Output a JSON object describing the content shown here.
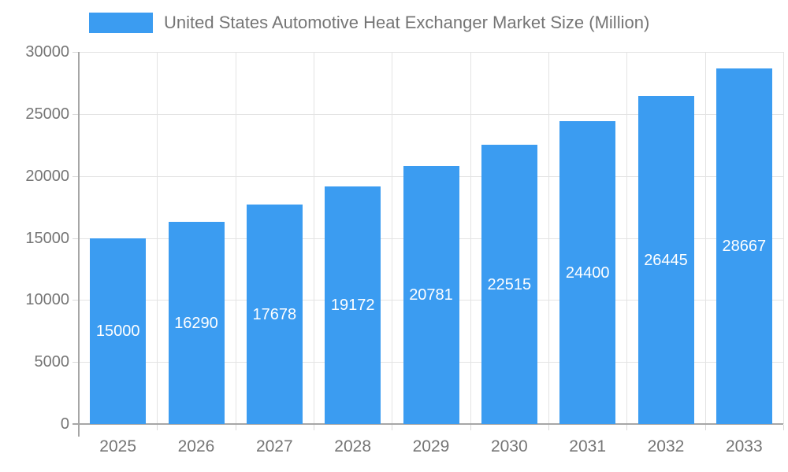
{
  "chart_data": {
    "type": "bar",
    "title": "United States Automotive Heat Exchanger Market Size (Million)",
    "legend_position": "top",
    "categories": [
      "2025",
      "2026",
      "2027",
      "2028",
      "2029",
      "2030",
      "2031",
      "2032",
      "2033"
    ],
    "series": [
      {
        "name": "United States Automotive Heat Exchanger Market Size (Million)",
        "values": [
          15000,
          16290,
          17678,
          19172,
          20781,
          22515,
          24400,
          26445,
          28667
        ]
      }
    ],
    "xlabel": "",
    "ylabel": "",
    "ylim": [
      0,
      30000
    ],
    "yticks": [
      0,
      5000,
      10000,
      15000,
      20000,
      25000,
      30000
    ],
    "grid": true,
    "value_labels": "inside-center",
    "colors": {
      "bar": "#3B9CF1",
      "bar_label_text": "#ffffff",
      "axis_text": "#757575",
      "grid_line": "#E3E3E3",
      "axis_line": "#A6A6A6",
      "tick_line": "#D9D9D9",
      "background": "#ffffff"
    }
  }
}
